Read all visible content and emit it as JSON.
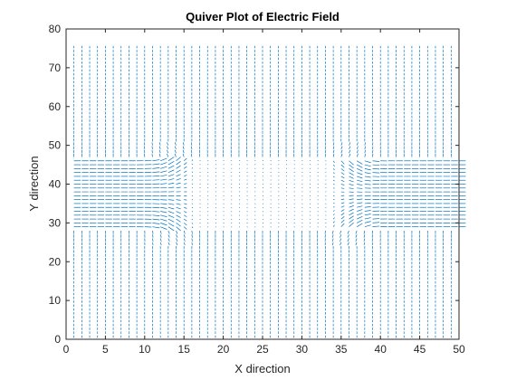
{
  "chart_data": {
    "type": "quiver",
    "title": "Quiver Plot of Electric Field",
    "xlabel": "X direction",
    "ylabel": "Y direction",
    "xlim": [
      0,
      50
    ],
    "ylim": [
      0,
      80
    ],
    "xticks": [
      0,
      5,
      10,
      15,
      20,
      25,
      30,
      35,
      40,
      45,
      50
    ],
    "yticks": [
      0,
      10,
      20,
      30,
      40,
      50,
      60,
      70,
      80
    ],
    "grid": false,
    "arrow_color": "#0072BD",
    "field_grid": {
      "x_range": [
        1,
        50
      ],
      "y_range": [
        1,
        75
      ],
      "step": 1
    },
    "field_structure": {
      "horizontal_band_y": [
        29,
        46
      ],
      "band_field": "horizontal (x-direction), strongest at the left and right edges",
      "transition_regions_x": [
        [
          11,
          16
        ],
        [
          34,
          38
        ]
      ],
      "outside_band_field": "short vertical (y-direction) arrows"
    }
  }
}
